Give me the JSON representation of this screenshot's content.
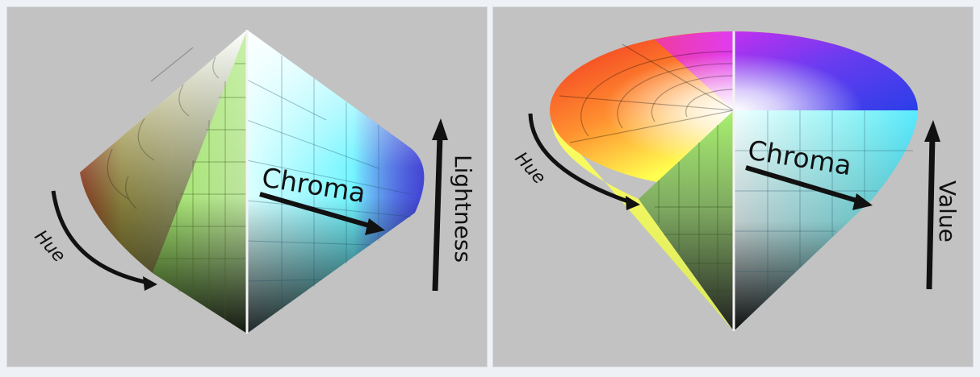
{
  "diagrams": [
    {
      "model": "HSL",
      "labels": {
        "hue": "Hue",
        "chroma": "Chroma",
        "axis": "Lightness"
      }
    },
    {
      "model": "HSV",
      "labels": {
        "hue": "Hue",
        "chroma": "Chroma",
        "axis": "Value"
      }
    }
  ],
  "colors": {
    "background": "#c2c2c2",
    "arrow": "#111111",
    "red": "#f03c1e",
    "yellow": "#ffff4a",
    "cyan": "#5cf4ff",
    "blue": "#3a3ad8",
    "magenta": "#e83ce8",
    "white": "#ffffff",
    "black": "#000000"
  }
}
